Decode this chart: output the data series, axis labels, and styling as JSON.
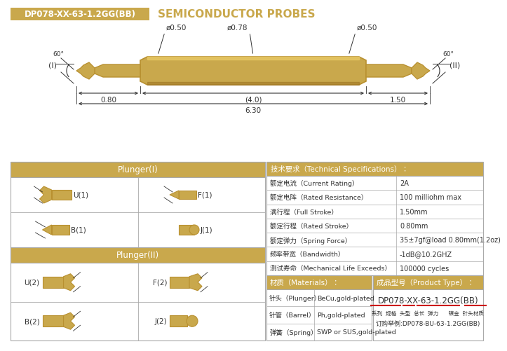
{
  "title_box_text": "DP078-XX-63-1.2GG(BB)",
  "title_main": "SEMICONDUCTOR PROBES",
  "gold": "#C9A84C",
  "mid_gold": "#B89030",
  "dark_gold": "#8B6914",
  "white": "#FFFFFF",
  "dark": "#333333",
  "border": "#AAAAAA",
  "red": "#CC0000",
  "bg": "#FFFFFF",
  "dim_phi_left": "ø0.50",
  "dim_phi_center": "ø0.78",
  "dim_phi_right": "ø0.50",
  "dim_d1": "0.80",
  "dim_d2": "(4.0)",
  "dim_d3": "1.50",
  "dim_total": "6.30",
  "label_I": "(I)",
  "label_II": "(II)",
  "angle_left": "60°",
  "angle_right": "60°",
  "plunger1_header": "Plunger(I)",
  "plunger2_header": "Plunger(II)",
  "plunger1_items": [
    [
      "U(1)",
      "F(1)"
    ],
    [
      "B(1)",
      "J(1)"
    ]
  ],
  "plunger2_items": [
    [
      "U(2)",
      "F(2)"
    ],
    [
      "B(2)",
      "J(2)"
    ]
  ],
  "tech_header": "技术要求（Technical Specifications）：",
  "tech_rows": [
    [
      "额定电流（Current Rating）",
      "2A"
    ],
    [
      "额定电阵（Rated Resistance）",
      "100 milliohm max"
    ],
    [
      "满行程（Full Stroke）",
      "1.50mm"
    ],
    [
      "额定行程（Rated Stroke）",
      "0.80mm"
    ],
    [
      "额定弹力（Spring Force）",
      "35±7gf@load 0.80mm(1.2oz)"
    ],
    [
      "频率带宽（Bandwidth）",
      "-1dB@10.2GHZ"
    ],
    [
      "测试寿命（Mechanical Life Exceeds）",
      "100000 cycles"
    ]
  ],
  "mat_header": "材质（Materials）：",
  "mat_rows": [
    [
      "针头（Plunger）",
      "BeCu,gold-plated"
    ],
    [
      "针管（Barrel）",
      "Ph,gold-plated"
    ],
    [
      "弹簧（Spring）",
      "SWP or SUS,gold-plated"
    ]
  ],
  "pt_header": "成品型号（Product Type）：",
  "pt_model": "DP078-XX-63-1.2GG(BB)",
  "pt_labels": "系列  规格  头型  总长  弹力      镀金  针头材质",
  "pt_order": "订购举例:DP078-BU-63-1.2GG(BB)"
}
